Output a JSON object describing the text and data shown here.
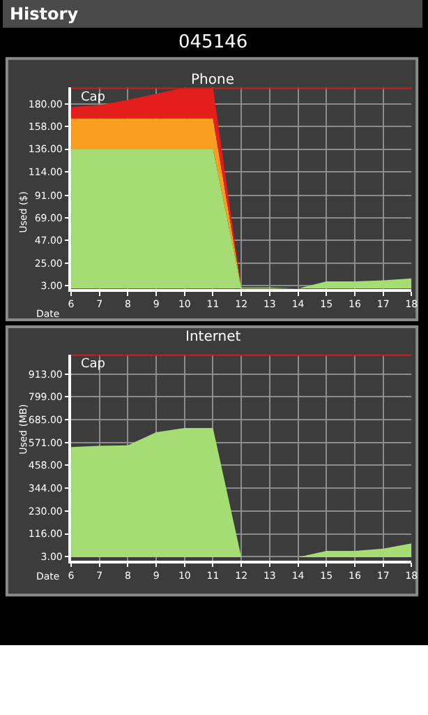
{
  "chart_data": [
    {
      "type": "other",
      "title": "History",
      "subtitle": "045146"
    },
    {
      "type": "area",
      "title": "Phone",
      "xlabel": "Date",
      "ylabel": "Used ($)",
      "stacked": true,
      "grid": true,
      "x": [
        6,
        7,
        8,
        9,
        10,
        11,
        12,
        13,
        14,
        15,
        16,
        17,
        18
      ],
      "series": [
        {
          "color": "#a5dc73",
          "values": [
            136,
            136,
            136,
            136,
            136,
            136,
            1,
            1,
            0,
            7,
            7,
            8,
            10
          ]
        },
        {
          "color": "#fc9e22",
          "values": [
            30,
            30,
            30,
            30,
            30,
            30,
            0,
            0,
            0,
            0,
            0,
            0,
            0
          ]
        },
        {
          "color": "#e41d1d",
          "values": [
            11,
            13,
            18,
            24,
            30,
            30,
            0,
            0,
            0,
            0,
            0,
            0,
            0
          ]
        }
      ],
      "xlim": [
        6,
        18
      ],
      "xticks": [
        6,
        7,
        8,
        9,
        10,
        11,
        12,
        13,
        14,
        15,
        16,
        17,
        18
      ],
      "ylim": [
        -0.6,
        196
      ],
      "yticks": [
        {
          "value": 3,
          "label": "3.00"
        },
        {
          "value": 25,
          "label": "25.00"
        },
        {
          "value": 47,
          "label": "47.00"
        },
        {
          "value": 69,
          "label": "69.00"
        },
        {
          "value": 91,
          "label": "91.00"
        },
        {
          "value": 114,
          "label": "114.00"
        },
        {
          "value": 136,
          "label": "136.00"
        },
        {
          "value": 158,
          "label": "158.00"
        },
        {
          "value": 180,
          "label": "180.00"
        }
      ],
      "ref_lines": [
        {
          "axis": "y",
          "value": 196,
          "label": "Cap",
          "color": "#d01c1c"
        }
      ]
    },
    {
      "type": "area",
      "title": "Internet",
      "xlabel": "Date",
      "ylabel": "Used (MB)",
      "grid": true,
      "x": [
        6,
        7,
        8,
        9,
        10,
        11,
        12,
        13,
        14,
        15,
        16,
        17,
        18
      ],
      "series": [
        {
          "color": "#a5dc73",
          "values": [
            549,
            555,
            558,
            623,
            644,
            644,
            0,
            0,
            0,
            31,
            31,
            42,
            68
          ]
        }
      ],
      "xlim": [
        6,
        18
      ],
      "xticks": [
        6,
        7,
        8,
        9,
        10,
        11,
        12,
        13,
        14,
        15,
        16,
        17,
        18
      ],
      "ylim": [
        -16,
        1010
      ],
      "yticks": [
        {
          "value": 3,
          "label": "3.00"
        },
        {
          "value": 116,
          "label": "116.00"
        },
        {
          "value": 230,
          "label": "230.00"
        },
        {
          "value": 344,
          "label": "344.00"
        },
        {
          "value": 458,
          "label": "458.00"
        },
        {
          "value": 571,
          "label": "571.00"
        },
        {
          "value": 685,
          "label": "685.00"
        },
        {
          "value": 799,
          "label": "799.00"
        },
        {
          "value": 913,
          "label": "913.00"
        }
      ],
      "ref_lines": [
        {
          "axis": "y",
          "value": 1010,
          "label": "Cap",
          "color": "#d01c1c"
        }
      ]
    }
  ]
}
